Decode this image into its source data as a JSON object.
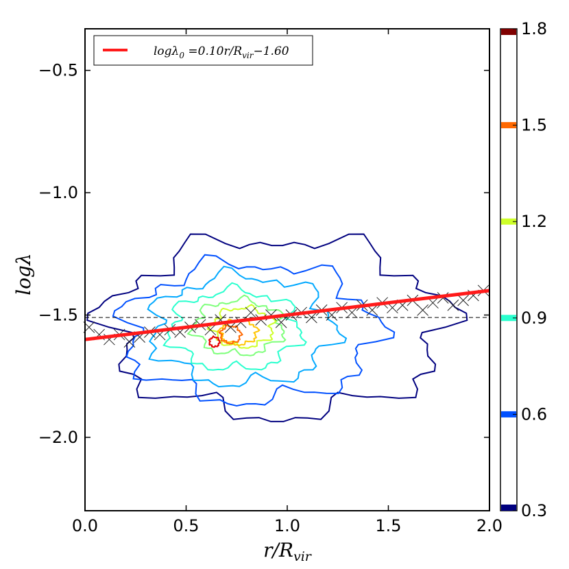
{
  "chart_data": {
    "type": "contour",
    "xlabel": "r/R_vir",
    "ylabel": "logλ",
    "xlim": [
      0.0,
      2.0
    ],
    "ylim": [
      -2.3,
      -0.33
    ],
    "x_ticks": [
      0.0,
      0.5,
      1.0,
      1.5,
      2.0
    ],
    "x_tick_labels": [
      "0.0",
      "0.5",
      "1.0",
      "1.5",
      "2.0"
    ],
    "y_ticks": [
      -0.5,
      -1.0,
      -1.5,
      -2.0
    ],
    "y_tick_labels": [
      "−0.5",
      "−1.0",
      "−1.5",
      "−2.0"
    ],
    "legend": {
      "label": "logλ₀ =0.10r/R_vir−1.60",
      "placement": "top-left"
    },
    "fit_line": {
      "slope": 0.1,
      "intercept": -1.6,
      "x_range": [
        0.0,
        2.0
      ],
      "color": "#ff1a1a"
    },
    "reference_line": {
      "y": -1.51,
      "style": "dashed"
    },
    "colorbar": {
      "range": [
        0.3,
        1.8
      ],
      "ticks": [
        0.3,
        0.6,
        0.9,
        1.2,
        1.5,
        1.8
      ],
      "tick_labels": [
        "0.3",
        "0.6",
        "0.9",
        "1.2",
        "1.5",
        "1.8"
      ],
      "level_colors": [
        "#00007f",
        "#0050ff",
        "#29ffce",
        "#ceff29",
        "#ff6800",
        "#7f0000"
      ]
    },
    "contour_levels": [
      {
        "level": 0.3,
        "color": "#00007f",
        "center": [
          0.95,
          -1.55
        ],
        "radius": [
          0.83,
          0.36
        ]
      },
      {
        "level": 0.45,
        "color": "#0050ff",
        "center": [
          0.82,
          -1.57
        ],
        "radius": [
          0.62,
          0.28
        ]
      },
      {
        "level": 0.6,
        "color": "#00a8ff",
        "center": [
          0.78,
          -1.56
        ],
        "radius": [
          0.45,
          0.22
        ]
      },
      {
        "level": 0.9,
        "color": "#29ffce",
        "center": [
          0.74,
          -1.56
        ],
        "radius": [
          0.32,
          0.16
        ]
      },
      {
        "level": 1.05,
        "color": "#7dff7a",
        "center": [
          0.76,
          -1.55
        ],
        "radius": [
          0.22,
          0.11
        ]
      },
      {
        "level": 1.2,
        "color": "#ceff29",
        "center": [
          0.78,
          -1.55
        ],
        "radius": [
          0.15,
          0.08
        ]
      },
      {
        "level": 1.35,
        "color": "#ffc400",
        "center": [
          0.76,
          -1.57
        ],
        "radius": [
          0.09,
          0.05
        ]
      },
      {
        "level": 1.5,
        "color": "#ff6800",
        "center": [
          0.72,
          -1.58
        ],
        "radius": [
          0.05,
          0.035
        ]
      },
      {
        "level": 1.65,
        "color": "#e40000",
        "center": [
          0.64,
          -1.61
        ],
        "radius": [
          0.025,
          0.02
        ]
      }
    ],
    "binned_medians": {
      "x": [
        0.02,
        0.07,
        0.12,
        0.17,
        0.22,
        0.27,
        0.32,
        0.37,
        0.42,
        0.47,
        0.52,
        0.57,
        0.62,
        0.67,
        0.72,
        0.77,
        0.82,
        0.87,
        0.92,
        0.97,
        1.02,
        1.07,
        1.12,
        1.17,
        1.22,
        1.27,
        1.32,
        1.37,
        1.42,
        1.47,
        1.52,
        1.57,
        1.62,
        1.67,
        1.72,
        1.77,
        1.82,
        1.87,
        1.92,
        1.97
      ],
      "y": [
        -1.55,
        -1.58,
        -1.6,
        -1.58,
        -1.61,
        -1.59,
        -1.57,
        -1.58,
        -1.56,
        -1.57,
        -1.55,
        -1.54,
        -1.56,
        -1.52,
        -1.55,
        -1.53,
        -1.49,
        -1.52,
        -1.5,
        -1.53,
        -1.5,
        -1.49,
        -1.51,
        -1.48,
        -1.5,
        -1.47,
        -1.49,
        -1.46,
        -1.48,
        -1.45,
        -1.47,
        -1.46,
        -1.44,
        -1.48,
        -1.45,
        -1.43,
        -1.46,
        -1.44,
        -1.42,
        -1.4
      ],
      "marker": "x"
    }
  }
}
